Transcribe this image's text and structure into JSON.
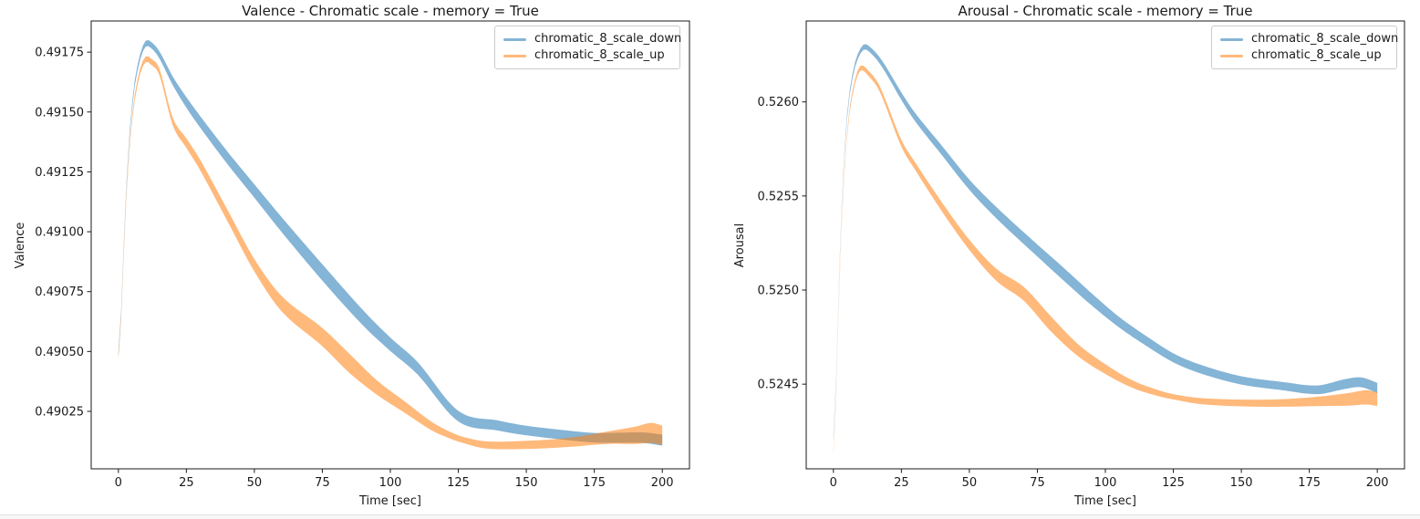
{
  "figure": {
    "background": "#ffffff",
    "text_color": "#1a1a1a",
    "spine_color": "#1a1a1a",
    "legend_border_color": "#cbcbcb"
  },
  "chart_data": [
    {
      "type": "line",
      "title": "Valence - Chromatic scale - memory = True",
      "xlabel": "Time [sec]",
      "ylabel": "Valence",
      "xlim": [
        -10,
        210
      ],
      "ylim": [
        0.49001,
        0.49188
      ],
      "grid": false,
      "xticks": {
        "values": [
          0,
          25,
          50,
          75,
          100,
          125,
          150,
          175,
          200
        ],
        "labels": [
          "0",
          "25",
          "50",
          "75",
          "100",
          "125",
          "150",
          "175",
          "200"
        ]
      },
      "yticks": {
        "values": [
          0.49025,
          0.4905,
          0.49075,
          0.491,
          0.49125,
          0.4915,
          0.49175
        ],
        "labels": [
          "0.49025",
          "0.49050",
          "0.49075",
          "0.49100",
          "0.49125",
          "0.49150",
          "0.49175"
        ]
      },
      "legend": {
        "position": "upper right",
        "entries": [
          "chromatic_8_scale_down",
          "chromatic_8_scale_up"
        ]
      },
      "series": [
        {
          "name": "chromatic_8_scale_down",
          "color": "#1f77b4",
          "opacity": 0.55,
          "points": [
            [
              0,
              0.49049,
              1e-05
            ],
            [
              1,
              0.49066,
              1e-05
            ],
            [
              2,
              0.49095,
              1e-05
            ],
            [
              3,
              0.4912,
              1.1e-05
            ],
            [
              4,
              0.49139,
              1.1e-05
            ],
            [
              5,
              0.49152,
              1.2e-05
            ],
            [
              6,
              0.49162,
              1.2e-05
            ],
            [
              8,
              0.49173,
              1.2e-05
            ],
            [
              10,
              0.491785,
              1.2e-05
            ],
            [
              12,
              0.49178,
              1.3e-05
            ],
            [
              15,
              0.49174,
              1.5e-05
            ],
            [
              20,
              0.49163,
              1.8e-05
            ],
            [
              25,
              0.49154,
              2.2e-05
            ],
            [
              30,
              0.49146,
              2.4e-05
            ],
            [
              40,
              0.49131,
              2.6e-05
            ],
            [
              50,
              0.49117,
              2.8e-05
            ],
            [
              60,
              0.49103,
              3.1e-05
            ],
            [
              75,
              0.49083,
              3.4e-05
            ],
            [
              90,
              0.49064,
              3.2e-05
            ],
            [
              100,
              0.49053,
              2.8e-05
            ],
            [
              110,
              0.49043,
              2.6e-05
            ],
            [
              125,
              0.49023,
              2.2e-05
            ],
            [
              140,
              0.49019,
              2.1e-05
            ],
            [
              150,
              0.49017,
              2e-05
            ],
            [
              165,
              0.49015,
              2e-05
            ],
            [
              175,
              0.49014,
              2e-05
            ],
            [
              185,
              0.49014,
              2.1e-05
            ],
            [
              193,
              0.49014,
              2.2e-05
            ],
            [
              200,
              0.49013,
              2.3e-05
            ]
          ]
        },
        {
          "name": "chromatic_8_scale_up",
          "color": "#ff7f0e",
          "opacity": 0.55,
          "points": [
            [
              0,
              0.49048,
              1e-05
            ],
            [
              1,
              0.49064,
              1e-05
            ],
            [
              2,
              0.49092,
              1e-05
            ],
            [
              3,
              0.49116,
              1e-05
            ],
            [
              4,
              0.49134,
              1.1e-05
            ],
            [
              5,
              0.49147,
              1.1e-05
            ],
            [
              6,
              0.49156,
              1.2e-05
            ],
            [
              8,
              0.49167,
              1.2e-05
            ],
            [
              10,
              0.49172,
              1.2e-05
            ],
            [
              12,
              0.49171,
              1.3e-05
            ],
            [
              15,
              0.49167,
              1.4e-05
            ],
            [
              20,
              0.49146,
              1.6e-05
            ],
            [
              25,
              0.49137,
              2e-05
            ],
            [
              30,
              0.49128,
              2.2e-05
            ],
            [
              40,
              0.49107,
              2.4e-05
            ],
            [
              50,
              0.49086,
              2.6e-05
            ],
            [
              60,
              0.4907,
              3.2e-05
            ],
            [
              75,
              0.49056,
              3.8e-05
            ],
            [
              85,
              0.49045,
              4e-05
            ],
            [
              95,
              0.49035,
              3e-05
            ],
            [
              105,
              0.49027,
              2.4e-05
            ],
            [
              115,
              0.49019,
              1.8e-05
            ],
            [
              122,
              0.49015,
              1.4e-05
            ],
            [
              127,
              0.49013,
              1.3e-05
            ],
            [
              135,
              0.49011,
              1.5e-05
            ],
            [
              150,
              0.49011,
              1.7e-05
            ],
            [
              165,
              0.49012,
              1.9e-05
            ],
            [
              180,
              0.49014,
              2.6e-05
            ],
            [
              190,
              0.49015,
              3.6e-05
            ],
            [
              196,
              0.49016,
              4.2e-05
            ],
            [
              200,
              0.49015,
              4e-05
            ]
          ]
        }
      ]
    },
    {
      "type": "line",
      "title": "Arousal - Chromatic scale - memory = True",
      "xlabel": "Time [sec]",
      "ylabel": "Arousal",
      "xlim": [
        -10,
        210
      ],
      "ylim": [
        0.52405,
        0.52643
      ],
      "grid": false,
      "xticks": {
        "values": [
          0,
          25,
          50,
          75,
          100,
          125,
          150,
          175,
          200
        ],
        "labels": [
          "0",
          "25",
          "50",
          "75",
          "100",
          "125",
          "150",
          "175",
          "200"
        ]
      },
      "yticks": {
        "values": [
          0.5245,
          0.525,
          0.5255,
          0.526
        ],
        "labels": [
          "0.5245",
          "0.5250",
          "0.5255",
          "0.5260"
        ]
      },
      "legend": {
        "position": "upper right",
        "entries": [
          "chromatic_8_scale_down",
          "chromatic_8_scale_up"
        ]
      },
      "series": [
        {
          "name": "chromatic_8_scale_down",
          "color": "#1f77b4",
          "opacity": 0.55,
          "points": [
            [
              0,
              0.52422,
              1e-05
            ],
            [
              1,
              0.52452,
              1e-05
            ],
            [
              2,
              0.52503,
              1e-05
            ],
            [
              3,
              0.52543,
              1.1e-05
            ],
            [
              4,
              0.52572,
              1.1e-05
            ],
            [
              5,
              0.52592,
              1.2e-05
            ],
            [
              6,
              0.52605,
              1.2e-05
            ],
            [
              8,
              0.5262,
              1.3e-05
            ],
            [
              11,
              0.52629,
              1.4e-05
            ],
            [
              14,
              0.52627,
              1.5e-05
            ],
            [
              18,
              0.5262,
              1.7e-05
            ],
            [
              25,
              0.52603,
              2e-05
            ],
            [
              30,
              0.52592,
              2.2e-05
            ],
            [
              40,
              0.52574,
              2.5e-05
            ],
            [
              50,
              0.52556,
              2.7e-05
            ],
            [
              60,
              0.52541,
              3e-05
            ],
            [
              75,
              0.52521,
              3.2e-05
            ],
            [
              85,
              0.52508,
              3.4e-05
            ],
            [
              95,
              0.52495,
              3.2e-05
            ],
            [
              105,
              0.52483,
              2.8e-05
            ],
            [
              115,
              0.52473,
              2.6e-05
            ],
            [
              125,
              0.52464,
              2.4e-05
            ],
            [
              135,
              0.52458,
              2.3e-05
            ],
            [
              150,
              0.52452,
              2.2e-05
            ],
            [
              165,
              0.52449,
              2.2e-05
            ],
            [
              178,
              0.52447,
              2.3e-05
            ],
            [
              188,
              0.5245,
              2.6e-05
            ],
            [
              194,
              0.52451,
              2.6e-05
            ],
            [
              200,
              0.52448,
              2.7e-05
            ]
          ]
        },
        {
          "name": "chromatic_8_scale_up",
          "color": "#ff7f0e",
          "opacity": 0.55,
          "points": [
            [
              0,
              0.52414,
              1e-05
            ],
            [
              1,
              0.52444,
              1e-05
            ],
            [
              2,
              0.52494,
              1e-05
            ],
            [
              3,
              0.52534,
              1e-05
            ],
            [
              4,
              0.52562,
              1.1e-05
            ],
            [
              5,
              0.52582,
              1.1e-05
            ],
            [
              6,
              0.52596,
              1.2e-05
            ],
            [
              8,
              0.52611,
              1.2e-05
            ],
            [
              10,
              0.52618,
              1.3e-05
            ],
            [
              13,
              0.52615,
              1.4e-05
            ],
            [
              17,
              0.52607,
              1.5e-05
            ],
            [
              25,
              0.52578,
              1.8e-05
            ],
            [
              30,
              0.52566,
              2e-05
            ],
            [
              40,
              0.52544,
              2.4e-05
            ],
            [
              50,
              0.52524,
              2.7e-05
            ],
            [
              60,
              0.52508,
              3.2e-05
            ],
            [
              70,
              0.52498,
              3.7e-05
            ],
            [
              80,
              0.52482,
              4e-05
            ],
            [
              90,
              0.52468,
              3.2e-05
            ],
            [
              100,
              0.52458,
              2.6e-05
            ],
            [
              110,
              0.5245,
              2e-05
            ],
            [
              120,
              0.52445,
              1.6e-05
            ],
            [
              126,
              0.52443,
              1.4e-05
            ],
            [
              135,
              0.52441,
              1.6e-05
            ],
            [
              150,
              0.5244,
              1.8e-05
            ],
            [
              165,
              0.5244,
              2e-05
            ],
            [
              180,
              0.52441,
              2.6e-05
            ],
            [
              190,
              0.52442,
              3.4e-05
            ],
            [
              196,
              0.52443,
              3.8e-05
            ],
            [
              200,
              0.52442,
              3.6e-05
            ]
          ]
        }
      ]
    }
  ]
}
